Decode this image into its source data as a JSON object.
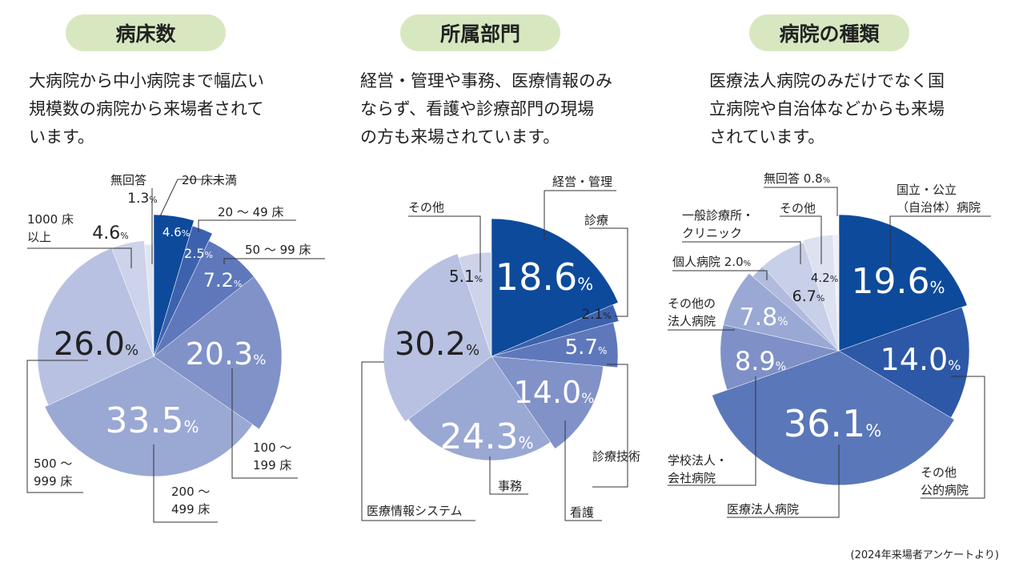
{
  "footnote": "(2024年来場者アンケートより)",
  "charts": [
    {
      "title": "病床数",
      "description": [
        "大病院から中小病院まで幅広い",
        "規模数の病院から来場者されて",
        "います。"
      ]
    },
    {
      "title": "所属部門",
      "description": [
        "経営・管理や事務、医療情報のみ",
        "ならず、看護や診療部門の現場",
        "の方も来場されています。"
      ]
    },
    {
      "title": "病院の種類",
      "description": [
        "医療法人病院のみだけでなく国",
        "立病院や自治体などからも来場",
        "されています。"
      ]
    }
  ],
  "chart_data": [
    {
      "type": "pie",
      "title": "病床数",
      "unit": "%",
      "slices": [
        {
          "label": "20 床未満",
          "value": 4.6,
          "color": "#0d4a9b"
        },
        {
          "label": "20 〜 49 床",
          "value": 2.5,
          "color": "#3c62ae"
        },
        {
          "label": "50 〜 99 床",
          "value": 7.2,
          "color": "#5e78bb"
        },
        {
          "label": "100 〜 199 床",
          "value": 20.3,
          "color": "#8192c9"
        },
        {
          "label": "200 〜 499 床",
          "value": 33.5,
          "color": "#9aa8d4"
        },
        {
          "label": "500 〜 999 床",
          "value": 26.0,
          "color": "#b8c1e1"
        },
        {
          "label": "1000 床以上",
          "value": 4.6,
          "color": "#ccd3ea"
        },
        {
          "label": "無回答",
          "value": 1.3,
          "color": "#e1e5f2"
        }
      ]
    },
    {
      "type": "pie",
      "title": "所属部門",
      "unit": "%",
      "slices": [
        {
          "label": "経営・管理",
          "value": 18.6,
          "color": "#0d4a9b"
        },
        {
          "label": "診療",
          "value": 2.1,
          "color": "#3c62ae"
        },
        {
          "label": "診療技術",
          "value": 5.7,
          "color": "#5e78bb"
        },
        {
          "label": "看護",
          "value": 14.0,
          "color": "#8192c9"
        },
        {
          "label": "事務",
          "value": 24.3,
          "color": "#9aa8d4"
        },
        {
          "label": "医療情報システム",
          "value": 30.2,
          "color": "#b8c1e1"
        },
        {
          "label": "その他",
          "value": 5.1,
          "color": "#ccd3ea"
        }
      ]
    },
    {
      "type": "pie",
      "title": "病院の種類",
      "unit": "%",
      "slices": [
        {
          "label": "国立・公立（自治体）病院",
          "value": 19.6,
          "color": "#0d4a9b"
        },
        {
          "label": "その他公的病院",
          "value": 14.0,
          "color": "#2d58a7"
        },
        {
          "label": "医療法人病院",
          "value": 36.1,
          "color": "#5a77b9"
        },
        {
          "label": "学校法人・会社病院",
          "value": 8.9,
          "color": "#7e90c7"
        },
        {
          "label": "その他の法人病院",
          "value": 7.8,
          "color": "#9aa8d4"
        },
        {
          "label": "個人病院",
          "value": 2.0,
          "color": "#b1bbdd"
        },
        {
          "label": "一般診療所・クリニック",
          "value": 6.7,
          "color": "#c8cfe8"
        },
        {
          "label": "その他",
          "value": 4.2,
          "color": "#dde2f1"
        },
        {
          "label": "無回答",
          "value": 0.8,
          "color": "#eef0f8"
        }
      ]
    }
  ]
}
